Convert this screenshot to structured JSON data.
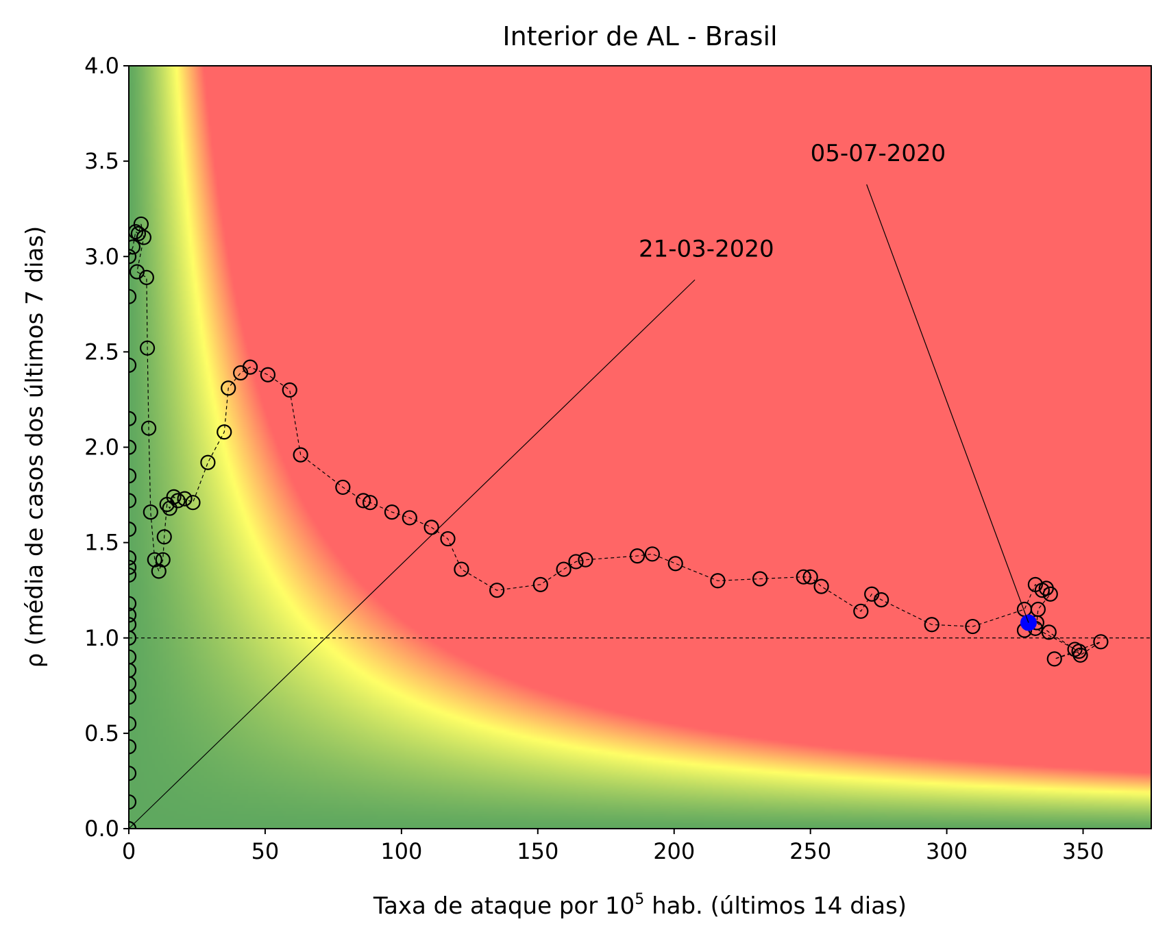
{
  "chart_data": {
    "type": "scatter",
    "title": "Interior de AL - Brasil",
    "xlabel_main": "Taxa de ataque por 10",
    "xlabel_sup": "5",
    "xlabel_tail": " hab. (últimos 14 dias)",
    "ylabel": "ρ (média de casos dos últimos 7 dias)",
    "xlim": [
      0,
      375
    ],
    "ylim": [
      0,
      4
    ],
    "xticks": [
      0,
      50,
      100,
      150,
      200,
      250,
      300,
      350
    ],
    "xtick_labels": [
      "0",
      "50",
      "100",
      "150",
      "200",
      "250",
      "300",
      "350"
    ],
    "yticks": [
      0,
      0.5,
      1,
      1.5,
      2,
      2.5,
      3,
      3.5,
      4
    ],
    "ytick_labels": [
      "0.0",
      "0.5",
      "1.0",
      "1.5",
      "2.0",
      "2.5",
      "3.0",
      "3.5",
      "4.0"
    ],
    "reference_line_y": 1.0,
    "background": "risk heatmap by x·ρ: green (low) → yellow → red (high)",
    "colors": {
      "low": "#5fa85f",
      "mid": "#ffff66",
      "high": "#ff6666",
      "last_point": "#0000ff"
    },
    "points": [
      [
        0,
        0
      ],
      [
        0,
        0.14
      ],
      [
        0,
        0.29
      ],
      [
        0,
        0.43
      ],
      [
        0,
        0.55
      ],
      [
        0,
        0.69
      ],
      [
        0,
        0.76
      ],
      [
        0,
        0.83
      ],
      [
        0,
        0.9
      ],
      [
        0,
        1.0
      ],
      [
        0,
        1.07
      ],
      [
        0,
        1.12
      ],
      [
        0,
        1.18
      ],
      [
        0,
        1.33
      ],
      [
        0,
        1.37
      ],
      [
        0,
        1.42
      ],
      [
        0,
        1.57
      ],
      [
        0,
        1.72
      ],
      [
        0,
        1.85
      ],
      [
        0,
        2.0
      ],
      [
        0,
        2.15
      ],
      [
        0,
        2.43
      ],
      [
        0,
        2.79
      ],
      [
        0,
        3.0
      ],
      [
        1.5,
        3.05
      ],
      [
        2.5,
        3.13
      ],
      [
        3.5,
        3.12
      ],
      [
        4.5,
        3.17
      ],
      [
        5.5,
        3.1
      ],
      [
        3,
        2.92
      ],
      [
        6.5,
        2.89
      ],
      [
        6.8,
        2.52
      ],
      [
        7.3,
        2.1
      ],
      [
        8,
        1.66
      ],
      [
        9.5,
        1.41
      ],
      [
        11,
        1.35
      ],
      [
        12.5,
        1.41
      ],
      [
        13,
        1.53
      ],
      [
        14,
        1.7
      ],
      [
        15,
        1.68
      ],
      [
        16.5,
        1.74
      ],
      [
        18,
        1.72
      ],
      [
        20.5,
        1.73
      ],
      [
        23.5,
        1.71
      ],
      [
        29,
        1.92
      ],
      [
        35,
        2.08
      ],
      [
        36.5,
        2.31
      ],
      [
        41,
        2.39
      ],
      [
        44.5,
        2.42
      ],
      [
        51,
        2.38
      ],
      [
        59,
        2.3
      ],
      [
        63,
        1.96
      ],
      [
        78.5,
        1.79
      ],
      [
        86,
        1.72
      ],
      [
        88.5,
        1.71
      ],
      [
        96.5,
        1.66
      ],
      [
        103,
        1.63
      ],
      [
        111,
        1.58
      ],
      [
        117,
        1.52
      ],
      [
        122,
        1.36
      ],
      [
        135,
        1.25
      ],
      [
        151,
        1.28
      ],
      [
        159.5,
        1.36
      ],
      [
        164,
        1.4
      ],
      [
        167.5,
        1.41
      ],
      [
        186.5,
        1.43
      ],
      [
        192,
        1.44
      ],
      [
        200.5,
        1.39
      ],
      [
        216,
        1.3
      ],
      [
        231.5,
        1.31
      ],
      [
        247.5,
        1.32
      ],
      [
        250,
        1.32
      ],
      [
        254,
        1.27
      ],
      [
        268.5,
        1.14
      ],
      [
        272.5,
        1.23
      ],
      [
        276,
        1.2
      ],
      [
        294.5,
        1.07
      ],
      [
        309.5,
        1.06
      ],
      [
        328.5,
        1.15
      ],
      [
        332.5,
        1.28
      ],
      [
        335,
        1.25
      ],
      [
        336.5,
        1.26
      ],
      [
        338,
        1.23
      ],
      [
        333.5,
        1.15
      ],
      [
        333,
        1.08
      ],
      [
        337.5,
        1.03
      ],
      [
        347,
        0.94
      ],
      [
        349,
        0.91
      ],
      [
        356.5,
        0.98
      ],
      [
        339.5,
        0.89
      ],
      [
        348.5,
        0.93
      ],
      [
        332.5,
        1.05
      ],
      [
        328.5,
        1.04
      ],
      [
        330,
        1.08
      ]
    ],
    "highlight_point": [
      330,
      1.08
    ],
    "annotations": [
      {
        "text": "21-03-2020",
        "target": [
          0,
          0
        ],
        "text_at": [
          187,
          3.0
        ]
      },
      {
        "text": "05-07-2020",
        "target": [
          330,
          1.08
        ],
        "text_at": [
          250,
          3.5
        ]
      }
    ]
  }
}
